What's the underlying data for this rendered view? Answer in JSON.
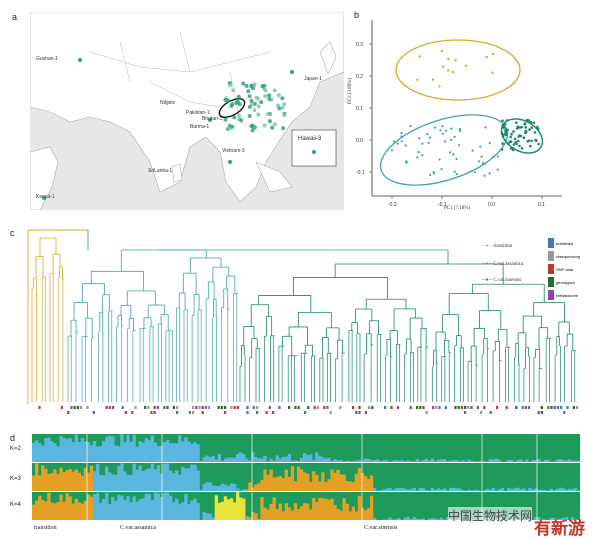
{
  "panels": {
    "a": "a",
    "b": "b",
    "c": "c",
    "d": "d"
  },
  "map": {
    "places": [
      "Gushan-1",
      "Nilgiris",
      "Pakistan-1",
      "Bhutan-1",
      "Burma-1",
      "Vietnam-3",
      "SriLanka-1",
      "Kenya-1",
      "Japan-1",
      "Hawaii-3"
    ],
    "colors": {
      "land": "#ffffff",
      "sea": "#e6e7e9",
      "dot": "#2ea57a",
      "dot2": "#7fc6b0",
      "ellipse": "#111111"
    }
  },
  "pca": {
    "xlabel": "PC1 (7.18%)",
    "ylabel": "PC2 (3.89%)",
    "xticks": [
      "-0.2",
      "-0.1",
      "0.0",
      "0.1"
    ],
    "yticks": [
      "0.3",
      "0.2",
      "0.1",
      "0.0",
      "-0.1"
    ],
    "colors": {
      "transition": "#d9a824",
      "assamica": "#3aa3b0",
      "sinensis": "#16866a"
    }
  },
  "tree": {
    "legend": [
      "transition",
      "C.var.assamica",
      "C.var.sinensis"
    ],
    "trait_legend": [
      "published",
      "resequencing",
      "SNP data",
      "genotyped",
      "metabolome"
    ],
    "trait_colors": [
      "#3f7ab5",
      "#9a9a9a",
      "#c0392b",
      "#2b6a2b",
      "#8e44ad"
    ],
    "colors": {
      "transition": "#d9a824",
      "assamica": "#3aa3b0",
      "sinensis": "#16866a"
    }
  },
  "structure": {
    "k_labels": [
      "K=2",
      "K=3",
      "K=4"
    ],
    "groups": [
      "transition",
      "C.var.assamica",
      "C.var.sinensis"
    ],
    "colors": {
      "green": "#1e9a5a",
      "blue": "#5bb6df",
      "orange": "#e3a024",
      "yellow": "#e9e33a"
    }
  },
  "watermark": {
    "text": "中国生物技术网",
    "logo_text": "有新游"
  }
}
